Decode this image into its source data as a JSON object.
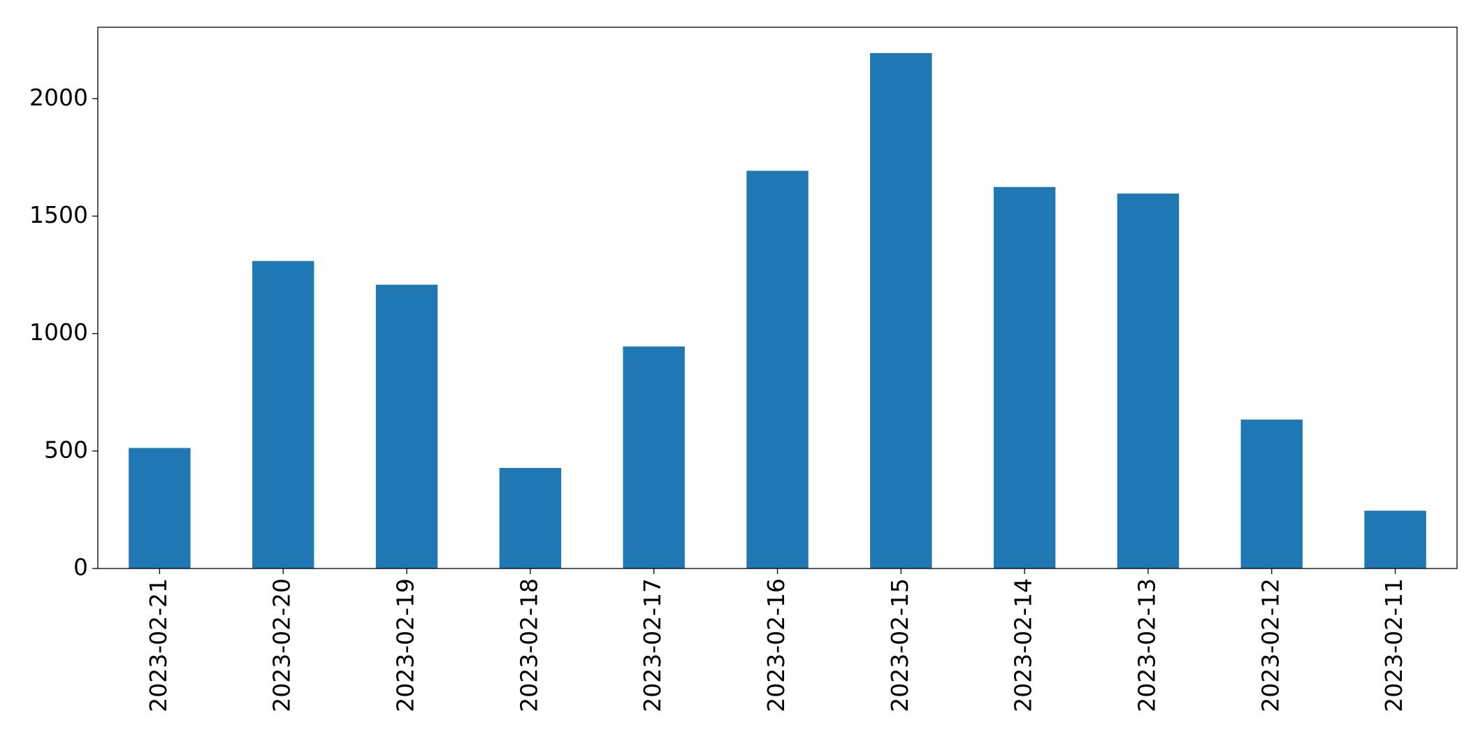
{
  "chart_data": {
    "type": "bar",
    "categories": [
      "2023-02-21",
      "2023-02-20",
      "2023-02-19",
      "2023-02-18",
      "2023-02-17",
      "2023-02-16",
      "2023-02-15",
      "2023-02-14",
      "2023-02-13",
      "2023-02-12",
      "2023-02-11"
    ],
    "values": [
      513,
      1309,
      1208,
      428,
      945,
      1693,
      2194,
      1624,
      1596,
      634,
      246
    ],
    "color": "#1f77b4",
    "ylim": [
      0,
      2304
    ],
    "yticks": [
      0,
      500,
      1000,
      1500,
      2000
    ],
    "grid": false
  }
}
